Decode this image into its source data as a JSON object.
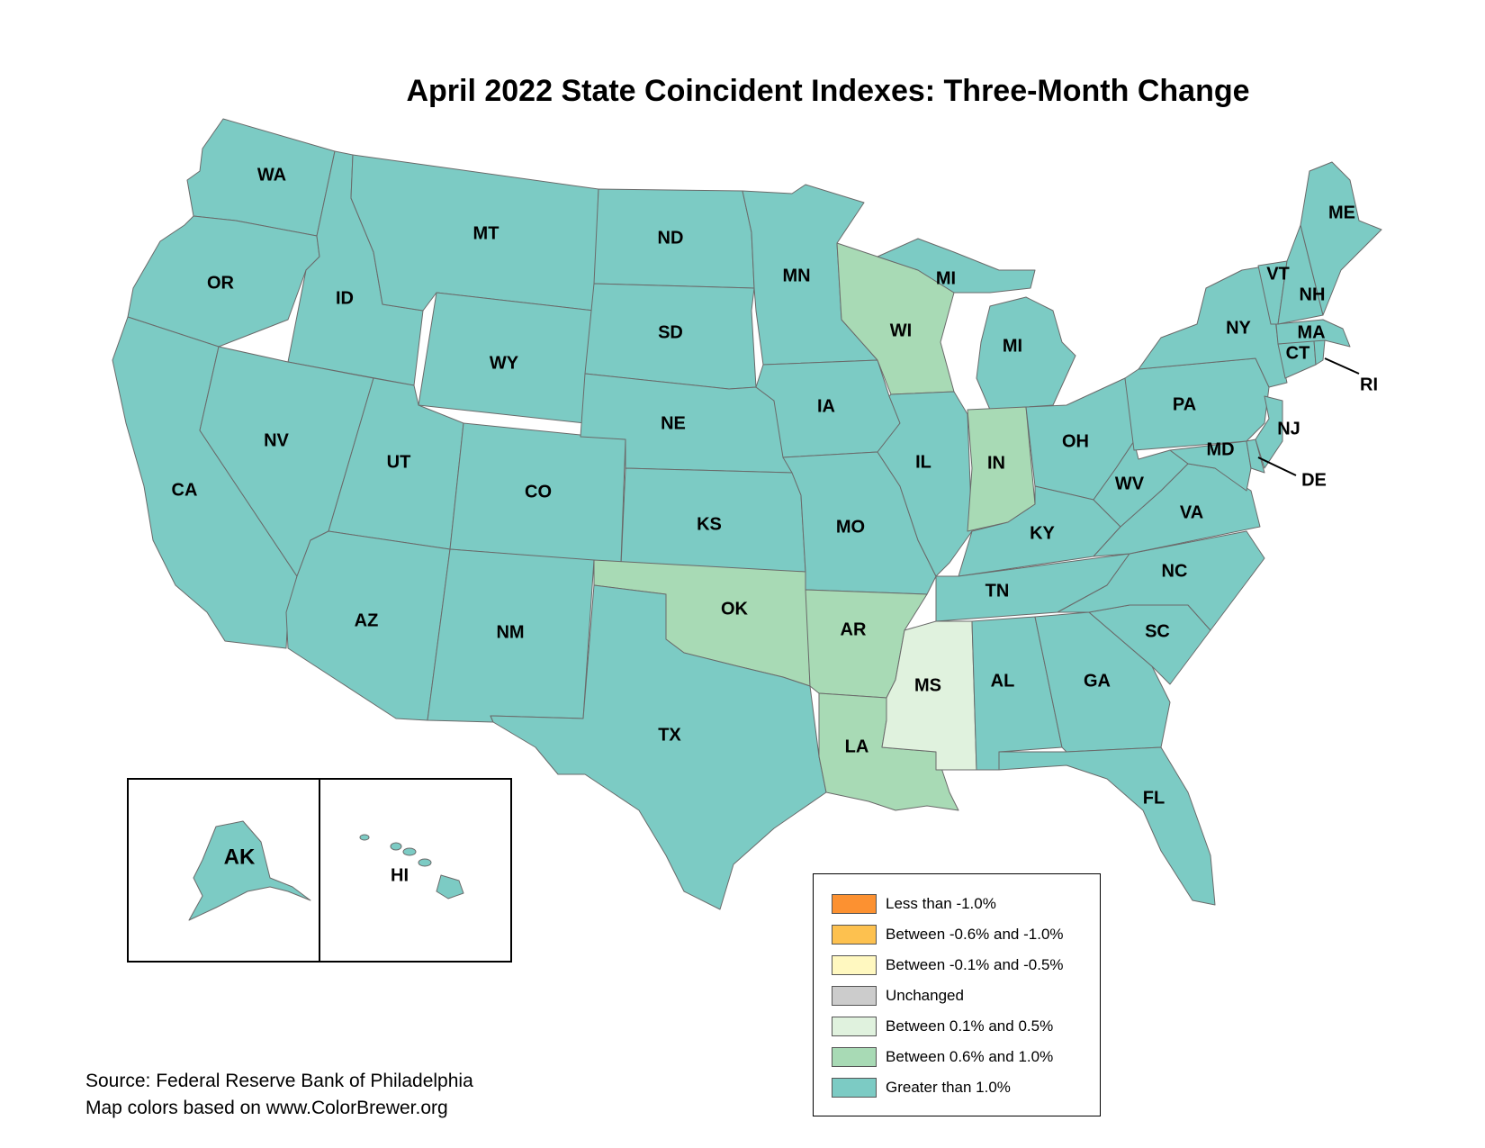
{
  "title": "April 2022 State Coincident Indexes: Three-Month Change",
  "legend": [
    {
      "label": "Less than -1.0%",
      "color": "#fc9131"
    },
    {
      "label": "Between -0.6% and -1.0%",
      "color": "#fdc14f"
    },
    {
      "label": "Between -0.1% and -0.5%",
      "color": "#fff8c0"
    },
    {
      "label": "Unchanged",
      "color": "#cccccc"
    },
    {
      "label": "Between 0.1% and 0.5%",
      "color": "#e0f2de"
    },
    {
      "label": "Between 0.6% and 1.0%",
      "color": "#a8dab5"
    },
    {
      "label": "Greater than 1.0%",
      "color": "#7ccbc4"
    }
  ],
  "source": {
    "line1": "Source: Federal Reserve Bank of Philadelphia",
    "line2": "Map colors based on www.ColorBrewer.org"
  },
  "states": {
    "WA": {
      "label": "WA",
      "category": 6
    },
    "OR": {
      "label": "OR",
      "category": 6
    },
    "CA": {
      "label": "CA",
      "category": 6
    },
    "ID": {
      "label": "ID",
      "category": 6
    },
    "NV": {
      "label": "NV",
      "category": 6
    },
    "MT": {
      "label": "MT",
      "category": 6
    },
    "WY": {
      "label": "WY",
      "category": 6
    },
    "UT": {
      "label": "UT",
      "category": 6
    },
    "AZ": {
      "label": "AZ",
      "category": 6
    },
    "CO": {
      "label": "CO",
      "category": 6
    },
    "NM": {
      "label": "NM",
      "category": 6
    },
    "ND": {
      "label": "ND",
      "category": 6
    },
    "SD": {
      "label": "SD",
      "category": 6
    },
    "NE": {
      "label": "NE",
      "category": 6
    },
    "KS": {
      "label": "KS",
      "category": 6
    },
    "OK": {
      "label": "OK",
      "category": 5
    },
    "TX": {
      "label": "TX",
      "category": 6
    },
    "MN": {
      "label": "MN",
      "category": 6
    },
    "IA": {
      "label": "IA",
      "category": 6
    },
    "MO": {
      "label": "MO",
      "category": 6
    },
    "AR": {
      "label": "AR",
      "category": 5
    },
    "LA": {
      "label": "LA",
      "category": 5
    },
    "WI": {
      "label": "WI",
      "category": 5
    },
    "IL": {
      "label": "IL",
      "category": 6
    },
    "MI": {
      "label": "MI",
      "category": 6
    },
    "IN": {
      "label": "IN",
      "category": 5
    },
    "OH": {
      "label": "OH",
      "category": 6
    },
    "KY": {
      "label": "KY",
      "category": 6
    },
    "TN": {
      "label": "TN",
      "category": 6
    },
    "MS": {
      "label": "MS",
      "category": 4
    },
    "AL": {
      "label": "AL",
      "category": 6
    },
    "GA": {
      "label": "GA",
      "category": 6
    },
    "FL": {
      "label": "FL",
      "category": 6
    },
    "SC": {
      "label": "SC",
      "category": 6
    },
    "NC": {
      "label": "NC",
      "category": 6
    },
    "VA": {
      "label": "VA",
      "category": 6
    },
    "WV": {
      "label": "WV",
      "category": 6
    },
    "PA": {
      "label": "PA",
      "category": 6
    },
    "NY": {
      "label": "NY",
      "category": 6
    },
    "MD": {
      "label": "MD",
      "category": 6
    },
    "DE": {
      "label": "DE",
      "category": 6
    },
    "NJ": {
      "label": "NJ",
      "category": 6
    },
    "CT": {
      "label": "CT",
      "category": 6
    },
    "RI": {
      "label": "RI",
      "category": 6
    },
    "MA": {
      "label": "MA",
      "category": 6
    },
    "VT": {
      "label": "VT",
      "category": 6
    },
    "NH": {
      "label": "NH",
      "category": 6
    },
    "ME": {
      "label": "ME",
      "category": 6
    },
    "AK": {
      "label": "AK",
      "category": 6
    },
    "HI": {
      "label": "HI",
      "category": 6
    }
  }
}
